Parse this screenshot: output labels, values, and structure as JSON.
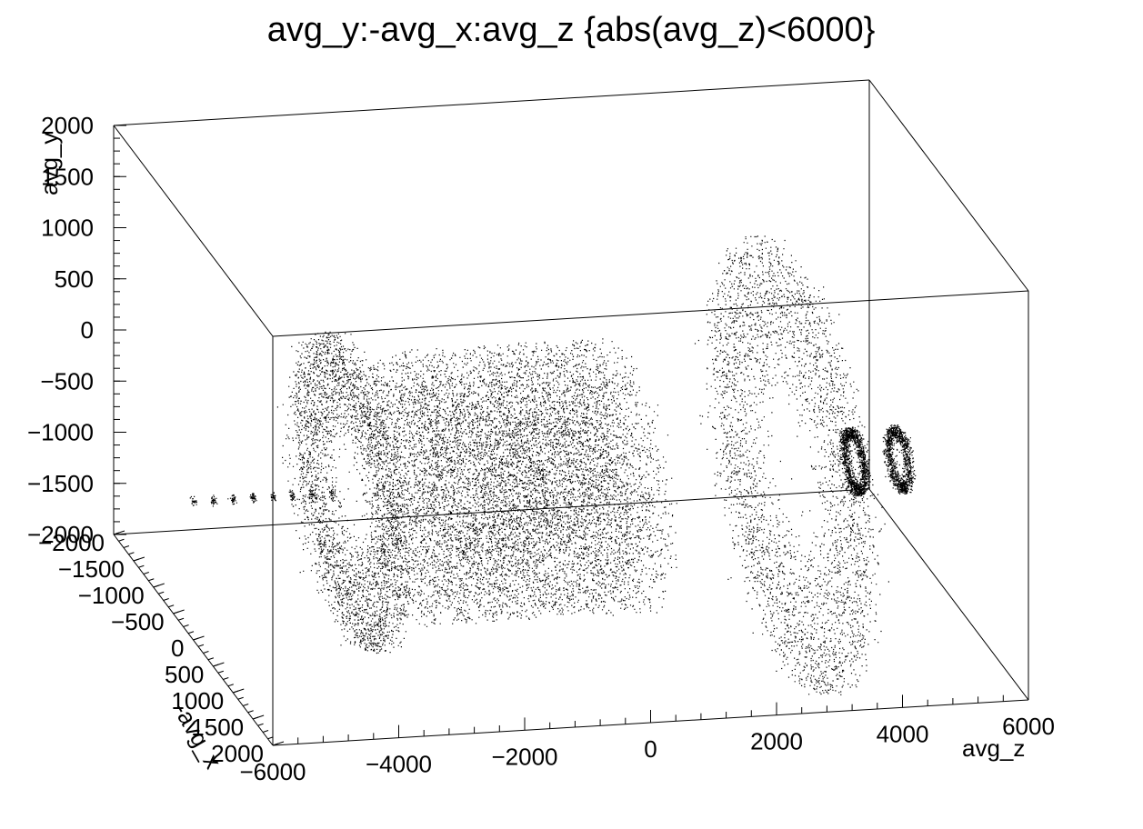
{
  "chart_data": {
    "type": "scatter",
    "title": "avg_y:-avg_x:avg_z {abs(avg_z)<6000}",
    "x_axis": {
      "label": "avg_z",
      "range": [
        -6000,
        6000
      ],
      "ticks": [
        -6000,
        -4000,
        -2000,
        0,
        2000,
        4000,
        6000
      ],
      "tick_labels": [
        "−6000",
        "−4000",
        "−2000",
        "0",
        "2000",
        "4000",
        "6000"
      ]
    },
    "depth_axis": {
      "label": "-avg_x",
      "range": [
        -2000,
        2000
      ],
      "ticks": [
        -2000,
        -1500,
        -1000,
        -500,
        0,
        500,
        1000,
        1500,
        2000
      ],
      "tick_labels": [
        "−2000",
        "−1500",
        "−1000",
        "−500",
        "0",
        "500",
        "1000",
        "1500",
        "2000"
      ]
    },
    "y_axis": {
      "label": "avg_y",
      "range": [
        -2000,
        2000
      ],
      "ticks": [
        -2000,
        -1500,
        -1000,
        -500,
        0,
        500,
        1000,
        1500,
        2000
      ],
      "tick_labels": [
        "−2000",
        "−1500",
        "−1000",
        "−500",
        "0",
        "500",
        "1000",
        "1500",
        "2000"
      ]
    },
    "grid": false,
    "legend": "none",
    "marker_color": "#000000",
    "point_clusters": [
      {
        "shape": "barrel",
        "z_range": [
          -2700,
          1000
        ],
        "radius": 1200,
        "density": "very high"
      },
      {
        "shape": "disk",
        "z": -3500,
        "radius": 1400,
        "density": "medium"
      },
      {
        "shape": "disk",
        "z": 3500,
        "radius": 2000,
        "density": "medium"
      },
      {
        "shape": "rings",
        "z_range": [
          4500,
          5200
        ],
        "radius": 300,
        "density": "high"
      },
      {
        "shape": "beamline",
        "z_range": [
          -6000,
          -3800
        ],
        "radius": 50,
        "density": "low"
      }
    ]
  }
}
